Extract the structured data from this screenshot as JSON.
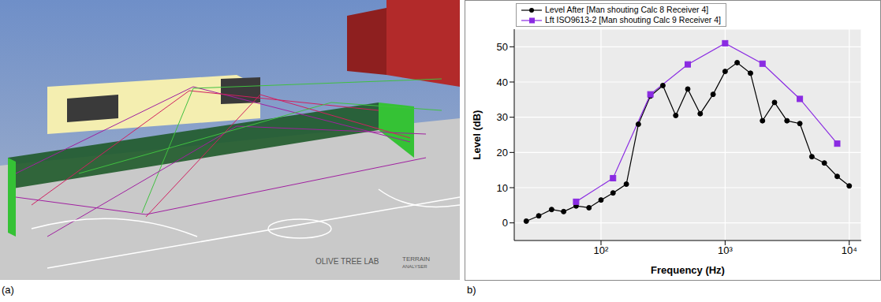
{
  "chart_data": {
    "type": "line",
    "xlabel": "Frequency (Hz)",
    "ylabel": "Level (dB)",
    "log": "x",
    "grid": true,
    "legend": "top left",
    "xlim": [
      20,
      12500
    ],
    "xticks": [
      {
        "value": 100,
        "label": "10²"
      },
      {
        "value": 1000,
        "label": "10³"
      },
      {
        "value": 10000,
        "label": "10⁴"
      }
    ],
    "ylim": [
      -5,
      55
    ],
    "yticks": [
      0,
      10,
      20,
      30,
      40,
      50
    ],
    "series": [
      {
        "name": "Level After [Man shouting Calc 8 Receiver 4]",
        "color": "#000000",
        "marker": "circle",
        "x": [
          25,
          31.5,
          40,
          50,
          63,
          80,
          100,
          125,
          160,
          200,
          250,
          315,
          400,
          500,
          630,
          800,
          1000,
          1250,
          1600,
          2000,
          2500,
          3150,
          4000,
          5000,
          6300,
          8000,
          10000
        ],
        "values": [
          0.5,
          2,
          3.8,
          3.2,
          4.8,
          4.3,
          6.5,
          8.5,
          11,
          28,
          36,
          39,
          30.5,
          38,
          31,
          36.5,
          43,
          45.5,
          42.5,
          29,
          34.2,
          29,
          28.2,
          18.8,
          17,
          13.2,
          10.5
        ]
      },
      {
        "name": "Lft ISO9613-2 [Man shouting Calc 9 Receiver 4]",
        "color": "#8a2be2",
        "marker": "square",
        "x": [
          63,
          125,
          250,
          500,
          1000,
          2000,
          4000,
          8000
        ],
        "values": [
          6,
          12.7,
          36.5,
          45,
          51,
          45.2,
          35.2,
          22.5
        ]
      }
    ]
  },
  "panel_labels": [
    "(a)",
    "b)"
  ],
  "scene": {
    "logo": [
      "OLIVE TREE LAB",
      "TERRAIN",
      "ANALYSER"
    ]
  }
}
